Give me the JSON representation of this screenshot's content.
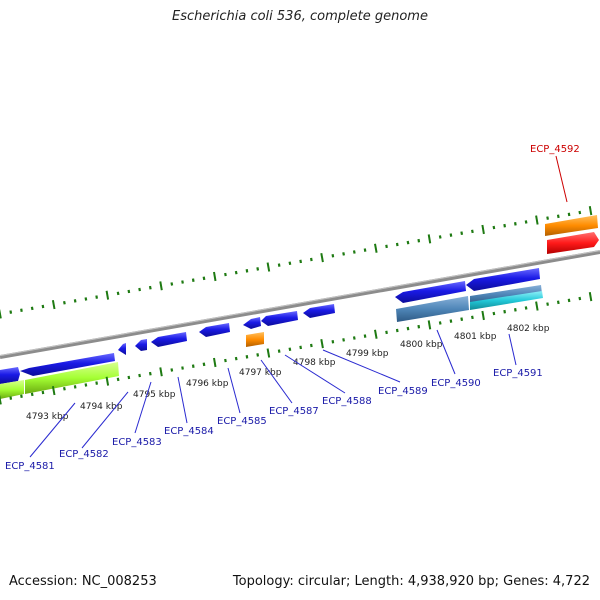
{
  "title": "Escherichia coli 536, complete genome",
  "footer": {
    "accession": "Accession: NC_008253",
    "summary": "Topology: circular; Length: 4,938,920 bp; Genes: 4,722"
  },
  "scale_labels": [
    "4793 kbp",
    "4794 kbp",
    "4795 kbp",
    "4796 kbp",
    "4797 kbp",
    "4798 kbp",
    "4799 kbp",
    "4800 kbp",
    "4801 kbp",
    "4802 kbp"
  ],
  "gene_labels": [
    "ECP_4581",
    "ECP_4582",
    "ECP_4583",
    "ECP_4584",
    "ECP_4585",
    "ECP_4587",
    "ECP_4588",
    "ECP_4589",
    "ECP_4590",
    "ECP_4591",
    "ECP_4592"
  ],
  "colors": {
    "cds": "#1a1ae6",
    "trna": "#ff8c00",
    "rrna": "#ff1a1a",
    "misc_green": "#a4ff33",
    "steelblue": "#4f86b8",
    "cyan": "#22c8d8",
    "backbone": "#8c8c8c",
    "tick": "#1e7a12",
    "label_blue": "#1a1aa8",
    "label_red": "#cc0000"
  }
}
